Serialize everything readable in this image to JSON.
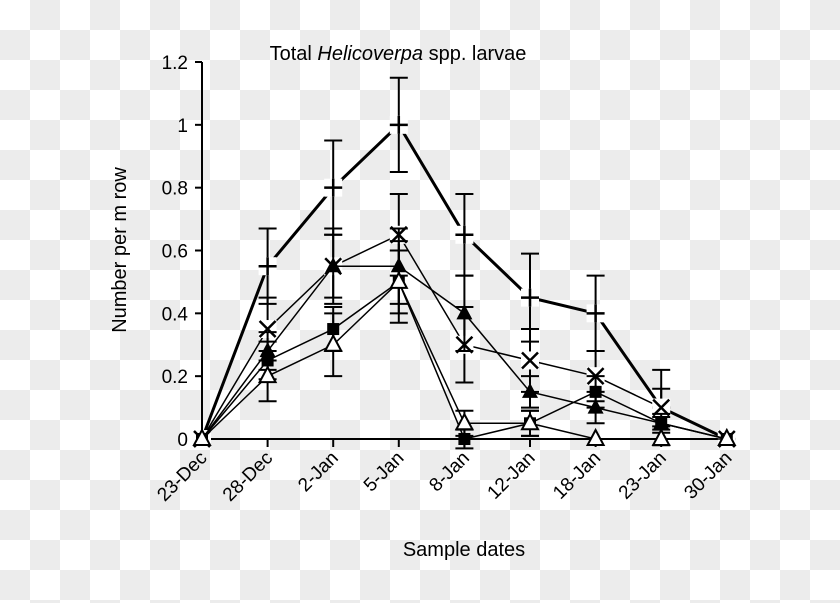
{
  "chart_data": {
    "type": "line",
    "title_prefix": "Total ",
    "title_italic": "Helicoverpa",
    "title_suffix": " spp. larvae",
    "xlabel": "Sample dates",
    "ylabel": "Number per m row",
    "categories": [
      "23-Dec",
      "28-Dec",
      "2-Jan",
      "5-Jan",
      "8-Jan",
      "12-Jan",
      "18-Jan",
      "23-Jan",
      "30-Jan"
    ],
    "ylim": [
      0,
      1.2
    ],
    "yticks": [
      "0",
      "0.2",
      "0.4",
      "0.6",
      "0.8",
      "1",
      "1.2"
    ],
    "grid": false,
    "series": [
      {
        "marker": "plus",
        "width": 3,
        "values": [
          0,
          0.55,
          0.8,
          1.0,
          0.65,
          0.45,
          0.4,
          0.1,
          0
        ],
        "errors": [
          0,
          0.12,
          0.15,
          0.15,
          0.13,
          0.14,
          0.12,
          0.12,
          0
        ]
      },
      {
        "marker": "x",
        "width": 1.5,
        "values": [
          0,
          0.35,
          0.55,
          0.65,
          0.3,
          0.25,
          0.2,
          0.1,
          0
        ],
        "errors": [
          0,
          0.1,
          0.12,
          0.13,
          0.12,
          0.1,
          0.08,
          0.06,
          0
        ]
      },
      {
        "marker": "filled-triangle",
        "width": 1.5,
        "values": [
          0,
          0.28,
          0.55,
          0.55,
          0.4,
          0.15,
          0.1,
          0.05,
          0
        ],
        "errors": [
          0,
          0.06,
          0.1,
          0.12,
          0.12,
          0.05,
          0.05,
          0.03,
          0
        ]
      },
      {
        "marker": "filled-square",
        "width": 1.5,
        "values": [
          0,
          0.25,
          0.35,
          0.5,
          0,
          0.05,
          0.15,
          0.05,
          0
        ],
        "errors": [
          0,
          0.06,
          0.07,
          0.1,
          0.03,
          0.04,
          0.05,
          0.02,
          0
        ]
      },
      {
        "marker": "open-triangle",
        "width": 1.5,
        "values": [
          0,
          0.2,
          0.3,
          0.5,
          0.05,
          0.05,
          0,
          0,
          0
        ],
        "errors": [
          0,
          0.08,
          0.1,
          0.13,
          0.04,
          0.04,
          0,
          0,
          0
        ]
      }
    ]
  }
}
